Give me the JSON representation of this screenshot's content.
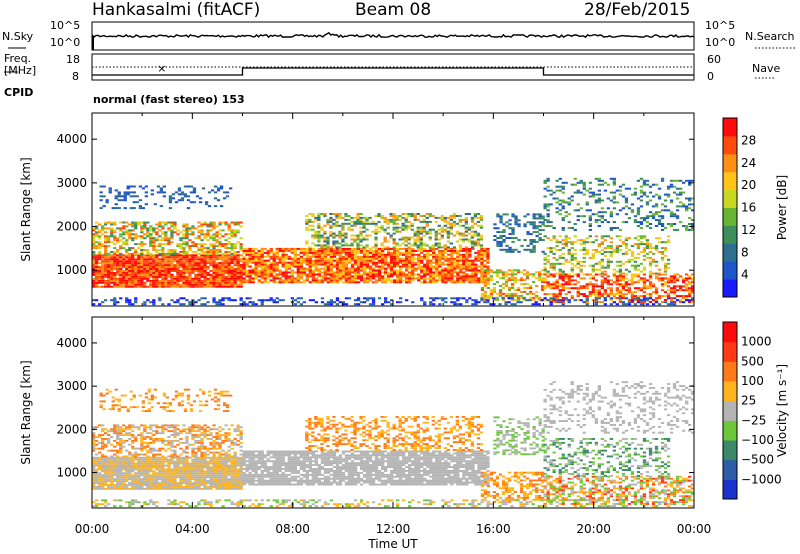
{
  "header": {
    "station": "Hankasalmi (fitACF)",
    "beam": "Beam 08",
    "date": "28/Feb/2015"
  },
  "noise_panel": {
    "left_label": "N.Sky",
    "right_label": "N.Search",
    "left_ticks": [
      "10^5",
      "10^0"
    ],
    "right_ticks": [
      "10^5",
      "10^0"
    ]
  },
  "freq_panel": {
    "left_label_1": "Freq.",
    "left_label_2": "[MHz]",
    "right_label": "Nave",
    "left_ticks": [
      "18",
      "8"
    ],
    "right_ticks": [
      "60",
      "0"
    ]
  },
  "cpid": {
    "label": "CPID",
    "value": "normal (fast stereo) 153"
  },
  "chart_data": [
    {
      "type": "heatmap",
      "name": "power",
      "ylabel": "Slant Range [km]",
      "yticks": [
        1000,
        2000,
        3000,
        4000
      ],
      "ylim": [
        180,
        4600
      ],
      "xlim_hours": [
        0,
        24
      ],
      "colorbar": {
        "label": "Power [dB]",
        "ticks": [
          "4",
          "8",
          "12",
          "16",
          "20",
          "24",
          "28"
        ],
        "colors": [
          "#1a1aff",
          "#1f55c8",
          "#2e6e8e",
          "#3c8f5a",
          "#68b534",
          "#c8d71f",
          "#ffc419",
          "#ff8f14",
          "#ff4a0d",
          "#ff0a0a"
        ]
      }
    },
    {
      "type": "heatmap",
      "name": "velocity",
      "ylabel": "Slant Range [km]",
      "yticks": [
        1000,
        2000,
        3000,
        4000
      ],
      "ylim": [
        180,
        4600
      ],
      "xlim_hours": [
        0,
        24
      ],
      "colorbar": {
        "label": "Velocity [m s⁻¹]",
        "ticks": [
          "1000",
          "500",
          "100",
          "25",
          "−25",
          "−100",
          "−500",
          "−1000"
        ],
        "colors": [
          "#1a33cc",
          "#2e5ea8",
          "#3a8a6a",
          "#6cc83a",
          "#b4b4b4",
          "#ffb41e",
          "#ff7a1a",
          "#ff3a14",
          "#ff0a0a"
        ]
      }
    }
  ],
  "xaxis": {
    "ticks": [
      "00:00",
      "04:00",
      "08:00",
      "12:00",
      "16:00",
      "20:00",
      "00:00"
    ],
    "label": "Time UT"
  }
}
